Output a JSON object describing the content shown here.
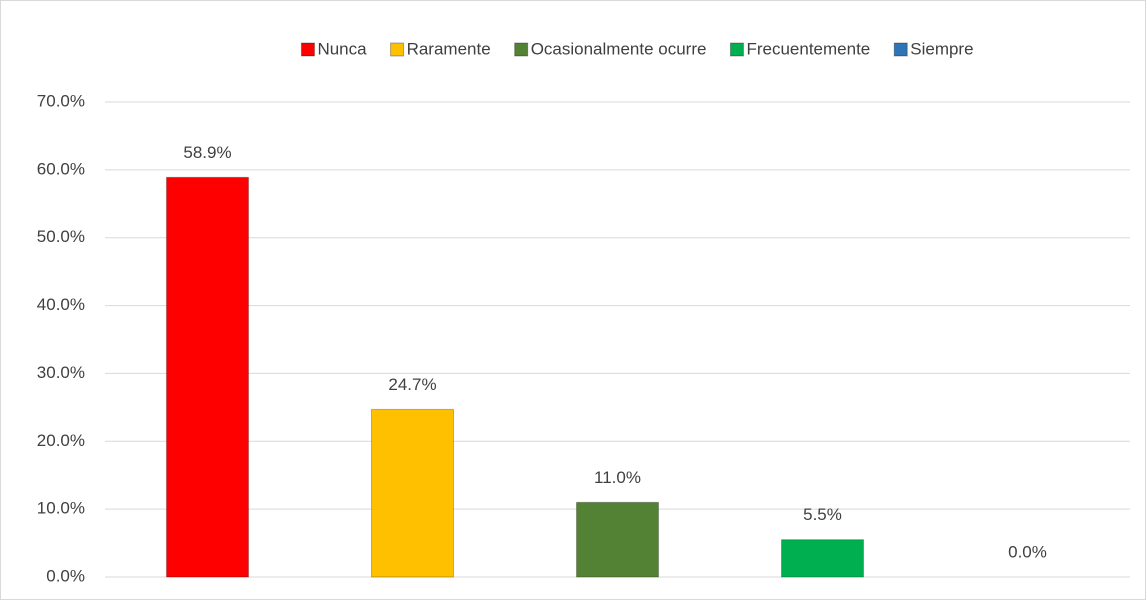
{
  "chart_data": {
    "type": "bar",
    "categories": [
      null
    ],
    "series": [
      {
        "name": "Nunca",
        "color": "#ff0000",
        "values": [
          58.9
        ],
        "value_labels": [
          "58.9%"
        ]
      },
      {
        "name": "Raramente",
        "color": "#ffc000",
        "values": [
          24.7
        ],
        "value_labels": [
          "24.7%"
        ]
      },
      {
        "name": "Ocasionalmente ocurre",
        "color": "#548235",
        "values": [
          11.0
        ],
        "value_labels": [
          "11.0%"
        ]
      },
      {
        "name": "Frecuentemente",
        "color": "#00b050",
        "values": [
          5.5
        ],
        "value_labels": [
          "5.5%"
        ]
      },
      {
        "name": "Siempre",
        "color": "#2e75b6",
        "values": [
          0.0
        ],
        "value_labels": [
          "0.0%"
        ]
      }
    ],
    "ylim": [
      0,
      70
    ],
    "yticks": [
      {
        "value": 0,
        "label": "0.0%"
      },
      {
        "value": 10,
        "label": "10.0%"
      },
      {
        "value": 20,
        "label": "20.0%"
      },
      {
        "value": 30,
        "label": "30.0%"
      },
      {
        "value": 40,
        "label": "40.0%"
      },
      {
        "value": 50,
        "label": "50.0%"
      },
      {
        "value": 60,
        "label": "60.0%"
      },
      {
        "value": 70,
        "label": "70.0%"
      }
    ],
    "grid": true,
    "legend": "top"
  }
}
